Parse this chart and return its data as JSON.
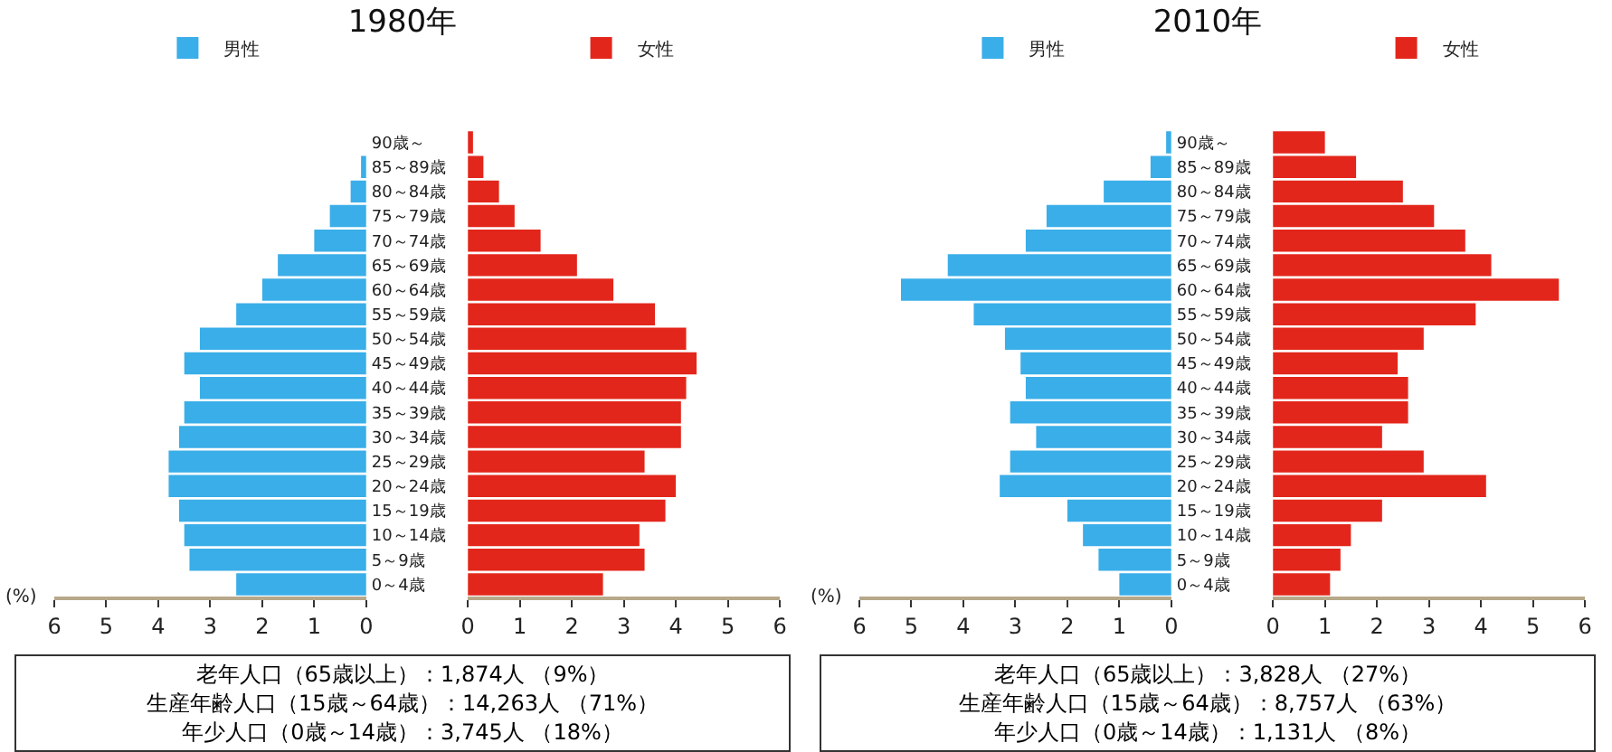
{
  "chart_data": [
    {
      "type": "bar",
      "orientation": "horizontal",
      "title": "1980年",
      "xlabel": "(%)",
      "legend": "top",
      "categories": [
        "90歳～",
        "85～89歳",
        "80～84歳",
        "75～79歳",
        "70～74歳",
        "65～69歳",
        "60～64歳",
        "55～59歳",
        "50～54歳",
        "45～49歳",
        "40～44歳",
        "35～39歳",
        "30～34歳",
        "25～29歳",
        "20～24歳",
        "15～19歳",
        "10～14歳",
        "5～9歳",
        "0～4歳"
      ],
      "series": [
        {
          "name": "男性",
          "color": "#3aaee8",
          "values": [
            0,
            0.1,
            0.3,
            0.7,
            1.0,
            1.7,
            2.0,
            2.5,
            3.2,
            3.5,
            3.2,
            3.5,
            3.6,
            3.8,
            3.8,
            3.6,
            3.5,
            3.4,
            2.5
          ]
        }
      ],
      "xlim": [
        6,
        0
      ],
      "xticks": [
        6,
        5,
        4,
        3,
        2,
        1,
        0
      ],
      "annotations": [
        "老年人口（65歳以上）：1,874人 （9%）",
        "生産年齢人口（15歳～64歳）：14,263人 （71%）",
        "年少人口（0歳～14歳）：3,745人 （18%）"
      ]
    },
    {
      "type": "bar",
      "orientation": "horizontal",
      "legend": "top",
      "categories": [
        null,
        null,
        null,
        null,
        null,
        null,
        null,
        null,
        null,
        null,
        null,
        null,
        null,
        null,
        null,
        null,
        null,
        null,
        null
      ],
      "series": [
        {
          "name": "女性",
          "color": "#e3261b",
          "values": [
            0.1,
            0.3,
            0.6,
            0.9,
            1.4,
            2.1,
            2.8,
            3.6,
            4.2,
            4.4,
            4.2,
            4.1,
            4.1,
            3.4,
            4.0,
            3.8,
            3.3,
            3.4,
            2.6
          ]
        }
      ],
      "xlim": [
        0,
        6
      ],
      "xticks": [
        0,
        1,
        2,
        3,
        4,
        5,
        6
      ]
    },
    {
      "type": "bar",
      "orientation": "horizontal",
      "title": "2010年",
      "xlabel": "(%)",
      "legend": "top",
      "categories": [
        "90歳～",
        "85～89歳",
        "80～84歳",
        "75～79歳",
        "70～74歳",
        "65～69歳",
        "60～64歳",
        "55～59歳",
        "50～54歳",
        "45～49歳",
        "40～44歳",
        "35～39歳",
        "30～34歳",
        "25～29歳",
        "20～24歳",
        "15～19歳",
        "10～14歳",
        "5～9歳",
        "0～4歳"
      ],
      "series": [
        {
          "name": "男性",
          "color": "#3aaee8",
          "values": [
            0.1,
            0.4,
            1.3,
            2.4,
            2.8,
            4.3,
            5.2,
            3.8,
            3.2,
            2.9,
            2.8,
            3.1,
            2.6,
            3.1,
            3.3,
            2.0,
            1.7,
            1.4,
            1.0
          ]
        }
      ],
      "xlim": [
        6,
        0
      ],
      "xticks": [
        6,
        5,
        4,
        3,
        2,
        1,
        0
      ],
      "annotations": [
        "老年人口（65歳以上）：3,828人 （27%）",
        "生産年齢人口（15歳～64歳）：8,757人 （63%）",
        "年少人口（0歳～14歳）：1,131人 （8%）"
      ]
    },
    {
      "type": "bar",
      "orientation": "horizontal",
      "legend": "top",
      "categories": [
        null,
        null,
        null,
        null,
        null,
        null,
        null,
        null,
        null,
        null,
        null,
        null,
        null,
        null,
        null,
        null,
        null,
        null,
        null
      ],
      "series": [
        {
          "name": "女性",
          "color": "#e3261b",
          "values": [
            1.0,
            1.6,
            2.5,
            3.1,
            3.7,
            4.2,
            5.5,
            3.9,
            2.9,
            2.4,
            2.6,
            2.6,
            2.1,
            2.9,
            4.1,
            2.1,
            1.5,
            1.3,
            1.1
          ]
        }
      ],
      "xlim": [
        0,
        6
      ],
      "xticks": [
        0,
        1,
        2,
        3,
        4,
        5,
        6
      ]
    }
  ]
}
